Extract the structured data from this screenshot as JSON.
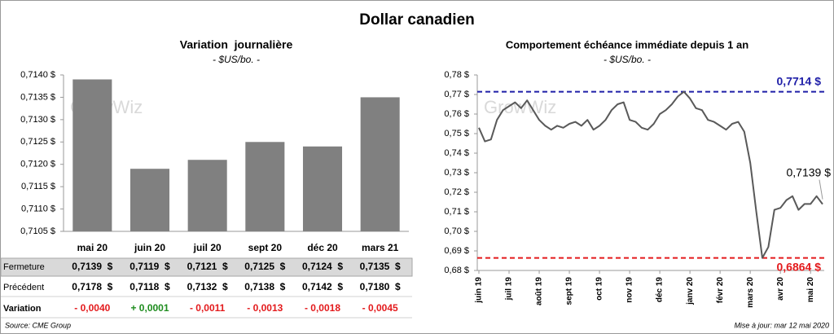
{
  "title": "Dollar canadien",
  "watermark": "GrowWiz",
  "chart_data": [
    {
      "type": "bar",
      "title": "Variation  journalière",
      "subtitle": "- $US/bo. -",
      "categories": [
        "mai 20",
        "juin 20",
        "juil 20",
        "sept 20",
        "déc 20",
        "mars 21"
      ],
      "values": [
        0.7139,
        0.7119,
        0.7121,
        0.7125,
        0.7124,
        0.7135
      ],
      "color": "#808080",
      "ylim": [
        0.7105,
        0.714
      ],
      "yticks": [
        {
          "value": 0.7105,
          "label": "0,7105 $"
        },
        {
          "value": 0.711,
          "label": "0,7110 $"
        },
        {
          "value": 0.7115,
          "label": "0,7115 $"
        },
        {
          "value": 0.712,
          "label": "0,7120 $"
        },
        {
          "value": 0.7125,
          "label": "0,7125 $"
        },
        {
          "value": 0.713,
          "label": "0,7130 $"
        },
        {
          "value": 0.7135,
          "label": "0,7135 $"
        },
        {
          "value": 0.714,
          "label": "0,7140 $"
        }
      ],
      "grid": false
    },
    {
      "type": "line",
      "title": "Comportement échéance immédiate depuis 1 an",
      "subtitle": "- $US/bo. -",
      "categories": [
        "juin 19",
        null,
        null,
        null,
        null,
        "juil 19",
        null,
        null,
        null,
        null,
        "août 19",
        null,
        null,
        null,
        null,
        "sept 19",
        null,
        null,
        null,
        null,
        "oct 19",
        null,
        null,
        null,
        null,
        "nov 19",
        null,
        null,
        null,
        null,
        "déc 19",
        null,
        null,
        null,
        null,
        "janv 20",
        null,
        null,
        null,
        null,
        "févr 20",
        null,
        null,
        null,
        null,
        "mars 20",
        null,
        null,
        null,
        null,
        "avr 20",
        null,
        null,
        null,
        null,
        "mai 20",
        null,
        null
      ],
      "values": [
        0.753,
        0.746,
        0.747,
        0.757,
        0.762,
        0.764,
        0.766,
        0.763,
        0.767,
        0.762,
        0.757,
        0.754,
        0.752,
        0.754,
        0.753,
        0.755,
        0.756,
        0.754,
        0.757,
        0.752,
        0.754,
        0.757,
        0.762,
        0.765,
        0.766,
        0.757,
        0.756,
        0.753,
        0.752,
        0.755,
        0.76,
        0.762,
        0.765,
        0.769,
        0.7714,
        0.768,
        0.763,
        0.762,
        0.757,
        0.756,
        0.754,
        0.752,
        0.755,
        0.756,
        0.751,
        0.735,
        0.71,
        0.6864,
        0.692,
        0.711,
        0.712,
        0.716,
        0.718,
        0.711,
        0.714,
        0.714,
        0.718,
        0.7139
      ],
      "color": "#595959",
      "ylim": [
        0.68,
        0.78
      ],
      "yticks": [
        {
          "value": 0.68,
          "label": "0,68 $"
        },
        {
          "value": 0.69,
          "label": "0,69 $"
        },
        {
          "value": 0.7,
          "label": "0,70 $"
        },
        {
          "value": 0.71,
          "label": "0,71 $"
        },
        {
          "value": 0.72,
          "label": "0,72 $"
        },
        {
          "value": 0.73,
          "label": "0,73 $"
        },
        {
          "value": 0.74,
          "label": "0,74 $"
        },
        {
          "value": 0.75,
          "label": "0,75 $"
        },
        {
          "value": 0.76,
          "label": "0,76 $"
        },
        {
          "value": 0.77,
          "label": "0,77 $"
        },
        {
          "value": 0.78,
          "label": "0,78 $"
        }
      ],
      "reference_lines": [
        {
          "value": 0.7714,
          "label": "0,7714 $",
          "color": "#1f1fa8"
        },
        {
          "value": 0.6864,
          "label": "0,6864 $",
          "color": "#e31a1c"
        }
      ],
      "annotations": [
        {
          "value": 0.7139,
          "label": "0,7139 $"
        }
      ],
      "grid": false
    }
  ],
  "table": {
    "rows": [
      {
        "label": "Fermeture",
        "cells": [
          "0,7139  $",
          "0,7119  $",
          "0,7121  $",
          "0,7125  $",
          "0,7124  $",
          "0,7135  $"
        ]
      },
      {
        "label": "Précédent",
        "cells": [
          "0,7178  $",
          "0,7118  $",
          "0,7132  $",
          "0,7138  $",
          "0,7142  $",
          "0,7180  $"
        ]
      },
      {
        "label": "Variation",
        "cells": [
          "- 0,0040",
          "+ 0,0001",
          "- 0,0011",
          "- 0,0013",
          "- 0,0018",
          "- 0,0045"
        ]
      }
    ]
  },
  "footer": {
    "source": "Source: CME Group",
    "updated": "Mise à jour: mar 12 mai 2020"
  }
}
